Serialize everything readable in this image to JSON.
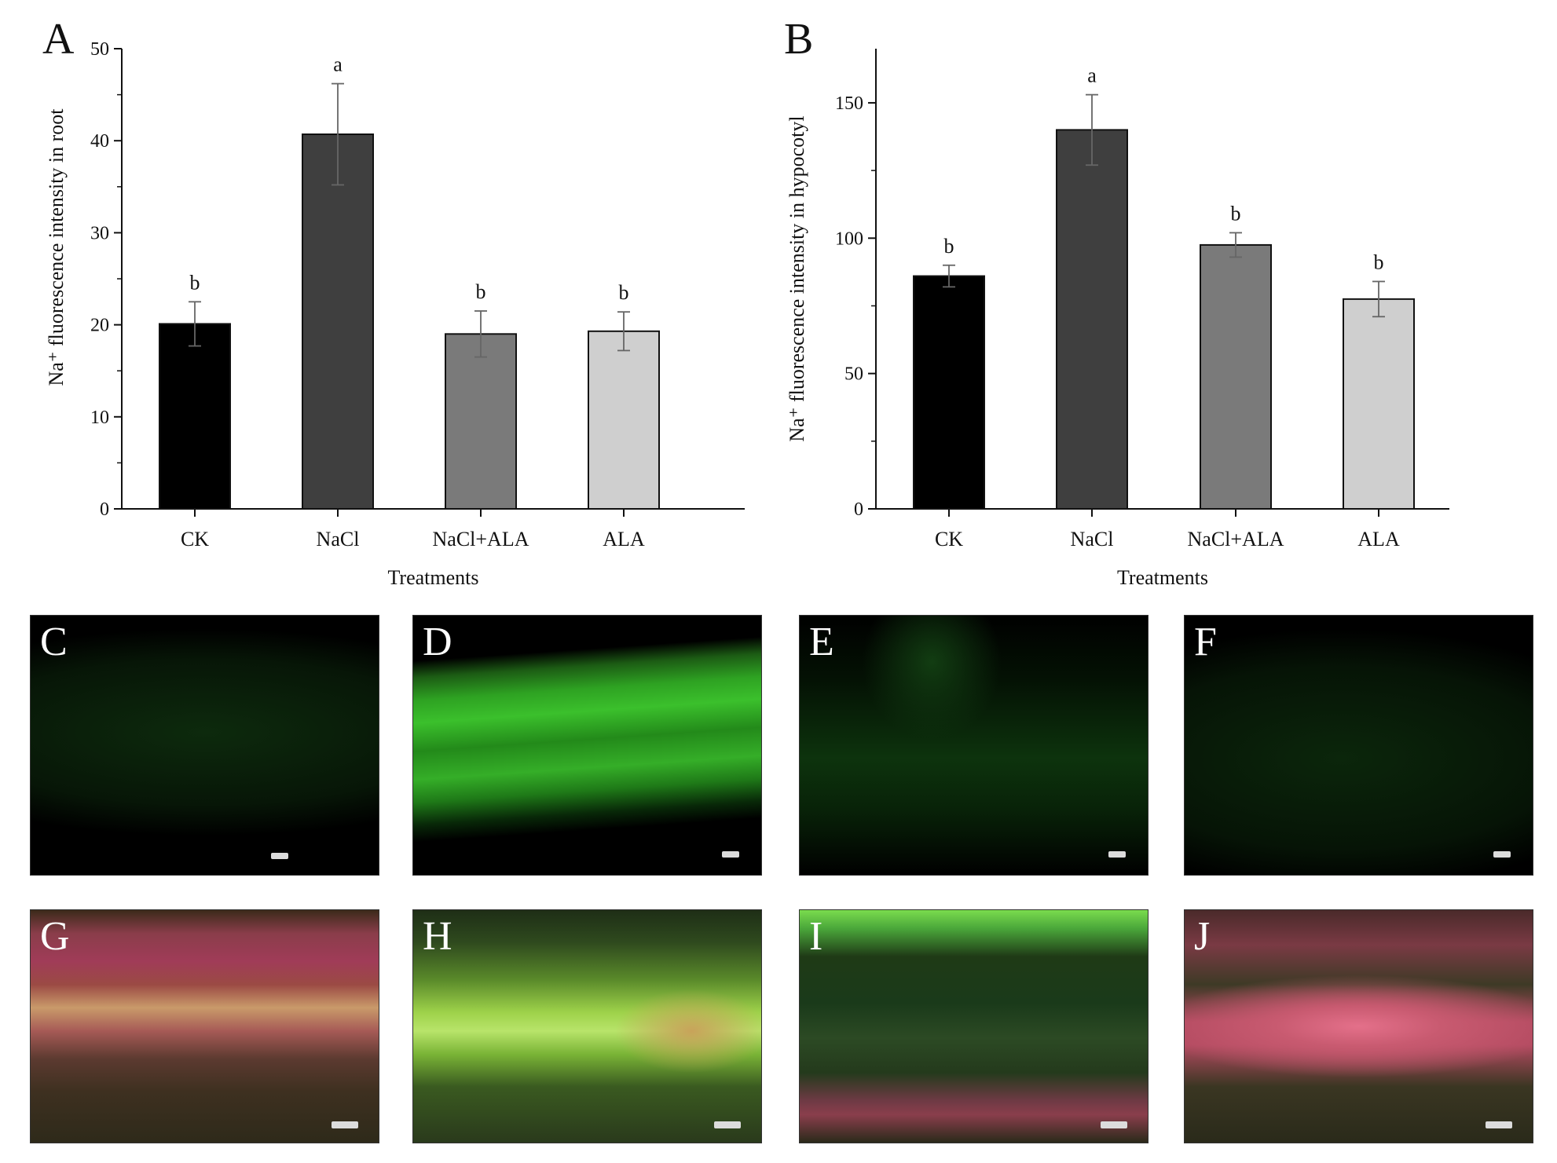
{
  "panels": {
    "chart_letters": [
      "A",
      "B"
    ],
    "micro_letters": [
      "C",
      "D",
      "E",
      "F",
      "G",
      "H",
      "I",
      "J"
    ]
  },
  "chart_data": [
    {
      "type": "bar",
      "panel": "A",
      "categories": [
        "CK",
        "NaCl",
        "NaCl+ALA",
        "ALA"
      ],
      "values": [
        20.1,
        40.7,
        19.0,
        19.3
      ],
      "errors": [
        2.4,
        5.5,
        2.5,
        2.1
      ],
      "significance": [
        "b",
        "a",
        "b",
        "b"
      ],
      "colors": [
        "#000000",
        "#3f3f3f",
        "#7a7a7a",
        "#cfcfcf"
      ],
      "xlabel": "Treatments",
      "ylabel": "Na⁺ fluorescence intensity in root",
      "ylim": [
        0,
        50
      ],
      "yticks": [
        0,
        10,
        20,
        30,
        40,
        50
      ]
    },
    {
      "type": "bar",
      "panel": "B",
      "categories": [
        "CK",
        "NaCl",
        "NaCl+ALA",
        "ALA"
      ],
      "values": [
        86,
        140,
        97.5,
        77.5
      ],
      "errors": [
        4,
        13,
        4.5,
        6.5
      ],
      "significance": [
        "b",
        "a",
        "b",
        "b"
      ],
      "colors": [
        "#000000",
        "#3f3f3f",
        "#7a7a7a",
        "#cfcfcf"
      ],
      "xlabel": "Treatments",
      "ylabel": "Na⁺ fluorescence intensity in hypocotyl",
      "ylim": [
        0,
        170
      ],
      "yticks": [
        0,
        50,
        100,
        150
      ]
    }
  ]
}
